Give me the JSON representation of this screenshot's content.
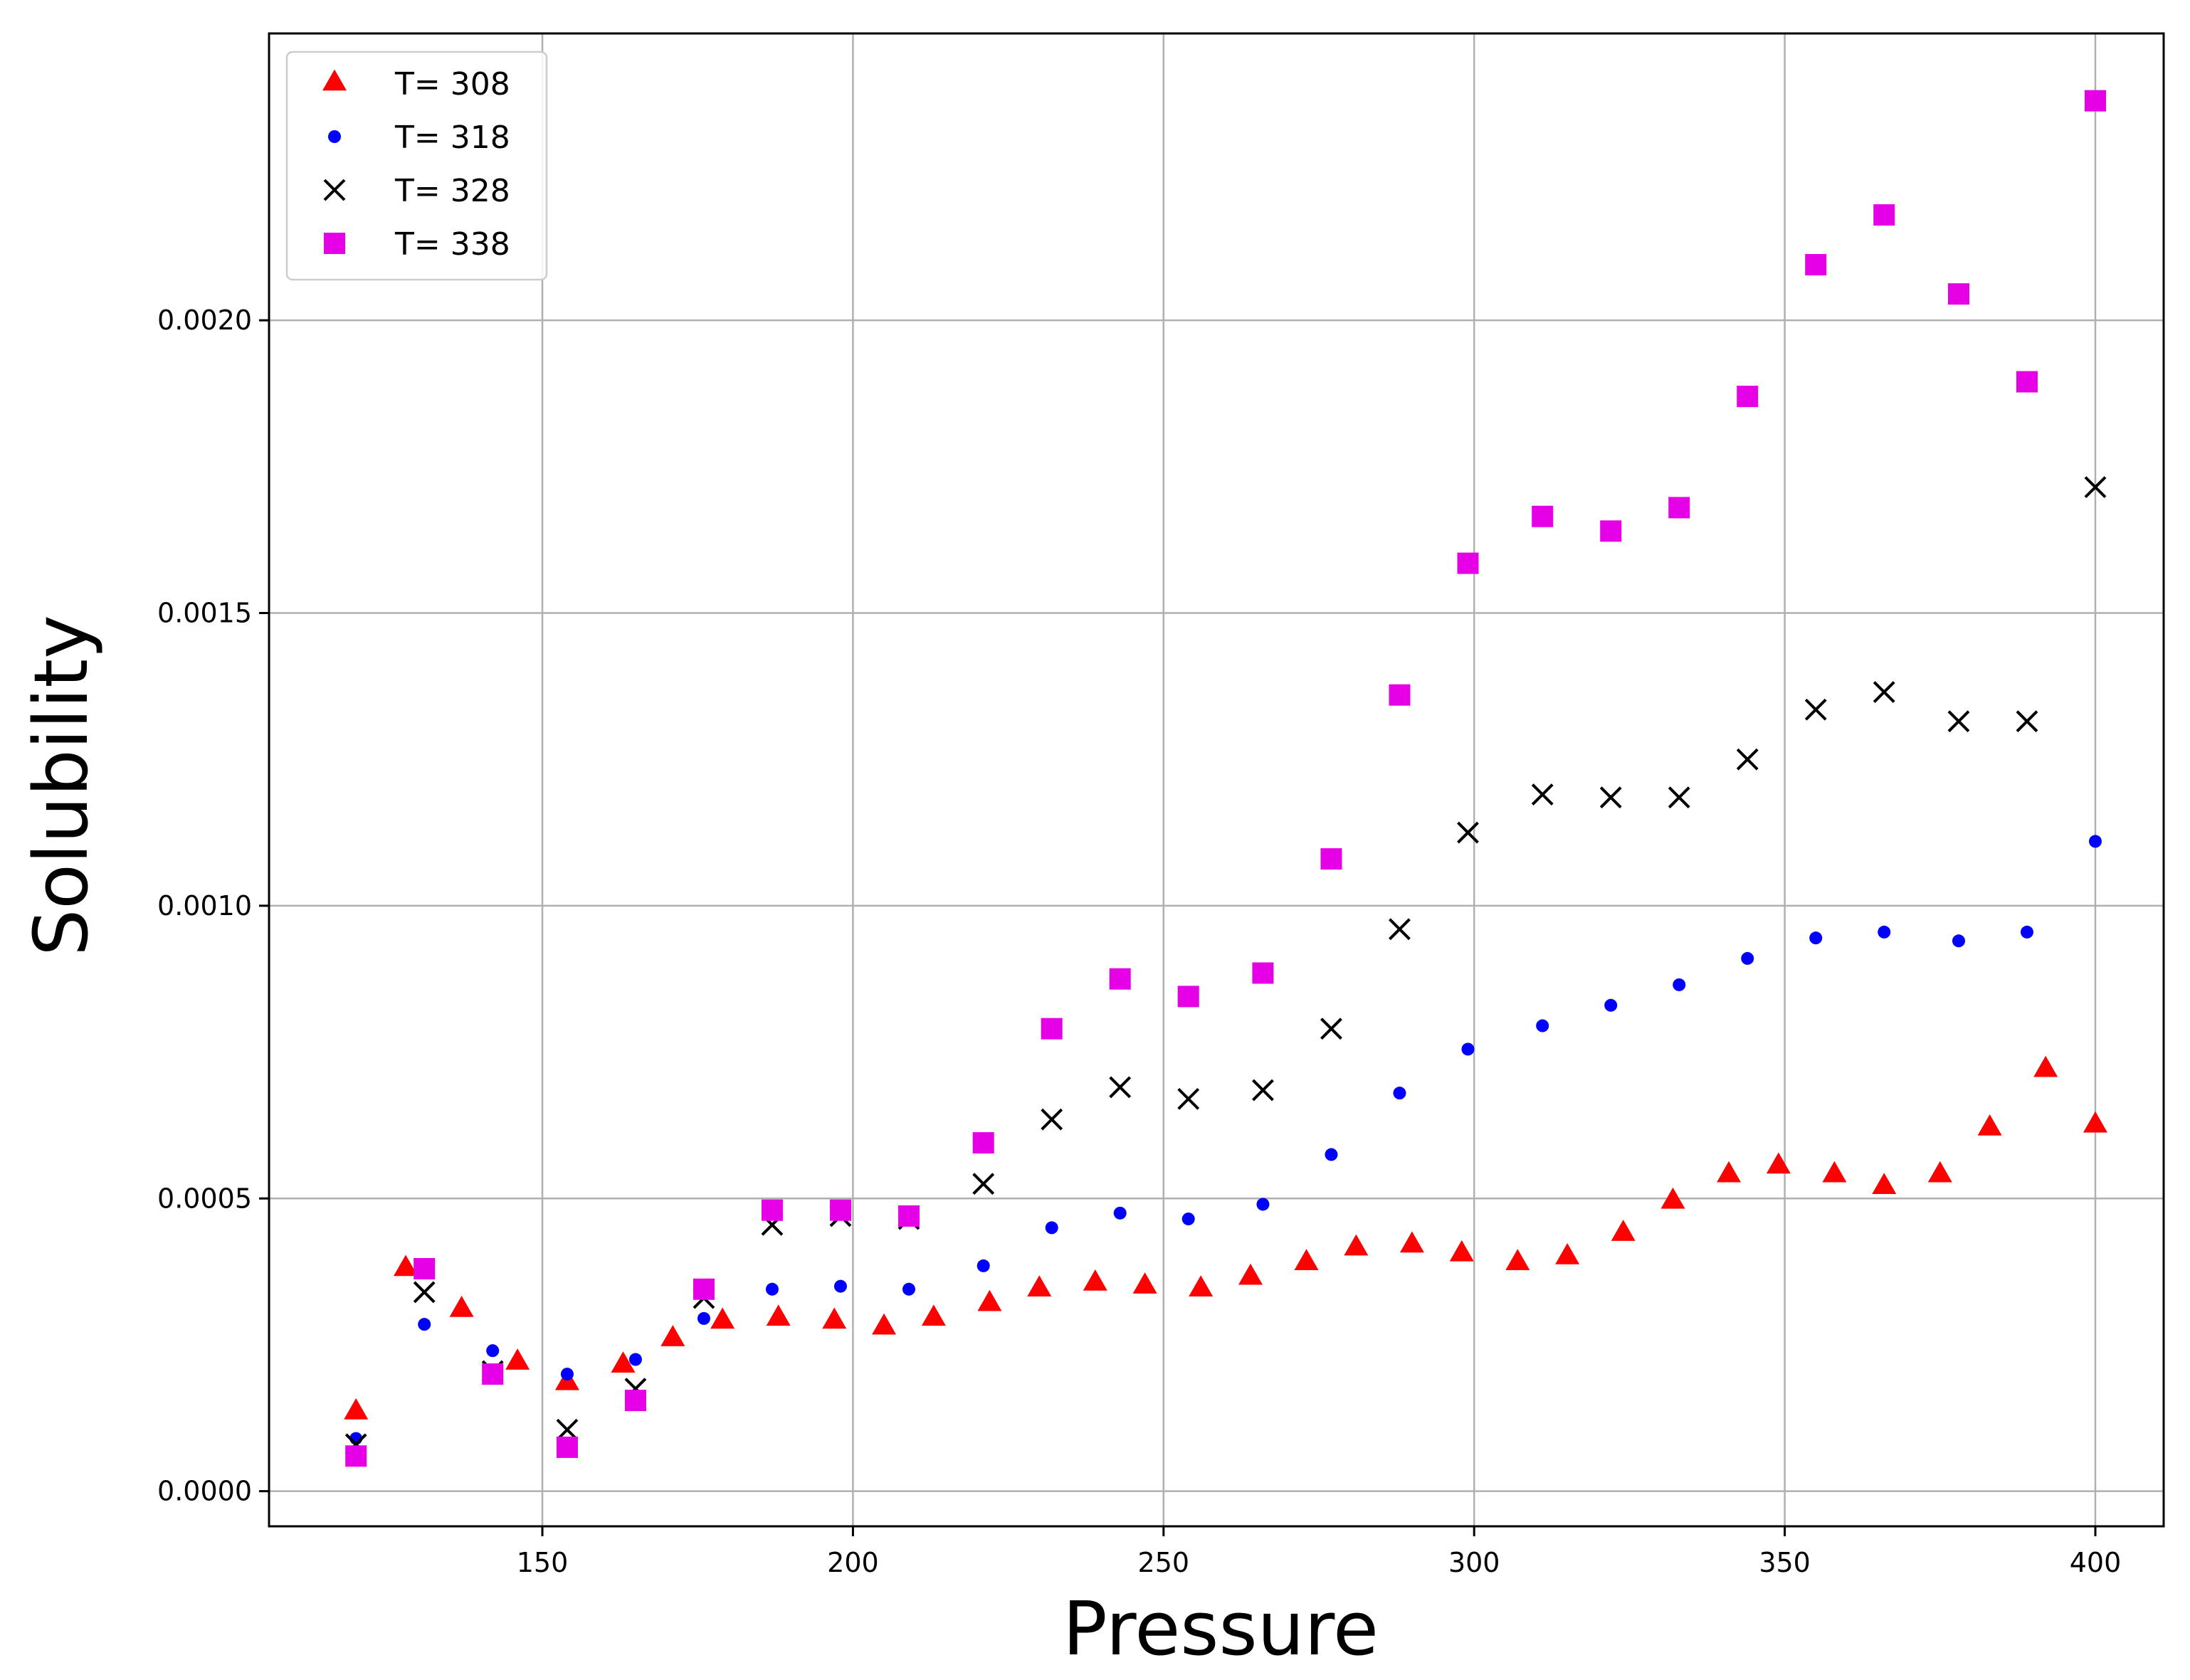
{
  "chart_data": {
    "type": "scatter",
    "title": "",
    "xlabel": "Pressure",
    "ylabel": "Solubility",
    "xlim": [
      106,
      411
    ],
    "ylim": [
      -6e-05,
      0.00249
    ],
    "x_ticks": [
      150,
      200,
      250,
      300,
      350,
      400
    ],
    "x_tick_labels": [
      "150",
      "200",
      "250",
      "300",
      "350",
      "400"
    ],
    "y_ticks": [
      0.0,
      0.0005,
      0.001,
      0.0015,
      0.002
    ],
    "y_tick_labels": [
      "0.0000",
      "0.0005",
      "0.0010",
      "0.0015",
      "0.0020"
    ],
    "grid": true,
    "legend_position": "top-left",
    "series": [
      {
        "name": "T= 308",
        "marker": "triangle",
        "color": "#ff0000",
        "points": [
          [
            120,
            0.000135
          ],
          [
            128,
            0.00038
          ],
          [
            137,
            0.00031
          ],
          [
            146,
            0.00022
          ],
          [
            154,
            0.000185
          ],
          [
            163,
            0.000215
          ],
          [
            171,
            0.00026
          ],
          [
            179,
            0.00029
          ],
          [
            188,
            0.000295
          ],
          [
            197,
            0.00029
          ],
          [
            205,
            0.00028
          ],
          [
            213,
            0.000295
          ],
          [
            222,
            0.00032
          ],
          [
            230,
            0.000345
          ],
          [
            239,
            0.000355
          ],
          [
            247,
            0.00035
          ],
          [
            256,
            0.000345
          ],
          [
            264,
            0.000365
          ],
          [
            273,
            0.00039
          ],
          [
            281,
            0.000415
          ],
          [
            290,
            0.00042
          ],
          [
            298,
            0.000405
          ],
          [
            307,
            0.00039
          ],
          [
            315,
            0.0004
          ],
          [
            324,
            0.00044
          ],
          [
            332,
            0.000495
          ],
          [
            341,
            0.00054
          ],
          [
            349,
            0.000555
          ],
          [
            358,
            0.00054
          ],
          [
            366,
            0.00052
          ],
          [
            375,
            0.00054
          ],
          [
            383,
            0.00062
          ],
          [
            392,
            0.00072
          ],
          [
            400,
            0.000625
          ]
        ]
      },
      {
        "name": "T= 318",
        "marker": "circle",
        "color": "#0000ff",
        "points": [
          [
            120,
            9e-05
          ],
          [
            131,
            0.000285
          ],
          [
            142,
            0.00024
          ],
          [
            154,
            0.0002
          ],
          [
            165,
            0.000225
          ],
          [
            176,
            0.000295
          ],
          [
            187,
            0.000345
          ],
          [
            198,
            0.00035
          ],
          [
            209,
            0.000345
          ],
          [
            221,
            0.000385
          ],
          [
            232,
            0.00045
          ],
          [
            243,
            0.000475
          ],
          [
            254,
            0.000465
          ],
          [
            266,
            0.00049
          ],
          [
            277,
            0.000575
          ],
          [
            288,
            0.00068
          ],
          [
            299,
            0.000755
          ],
          [
            311,
            0.000795
          ],
          [
            322,
            0.00083
          ],
          [
            333,
            0.000865
          ],
          [
            344,
            0.00091
          ],
          [
            355,
            0.000945
          ],
          [
            366,
            0.000955
          ],
          [
            378,
            0.00094
          ],
          [
            389,
            0.000955
          ],
          [
            400,
            0.00111
          ]
        ]
      },
      {
        "name": "T= 328",
        "marker": "x",
        "color": "#000000",
        "points": [
          [
            120,
            8e-05
          ],
          [
            131,
            0.00034
          ],
          [
            142,
            0.000205
          ],
          [
            154,
            0.000105
          ],
          [
            165,
            0.000175
          ],
          [
            176,
            0.00033
          ],
          [
            187,
            0.000455
          ],
          [
            198,
            0.00047
          ],
          [
            209,
            0.000465
          ],
          [
            221,
            0.000525
          ],
          [
            232,
            0.000635
          ],
          [
            243,
            0.00069
          ],
          [
            254,
            0.00067
          ],
          [
            266,
            0.000685
          ],
          [
            277,
            0.00079
          ],
          [
            288,
            0.00096
          ],
          [
            299,
            0.001125
          ],
          [
            311,
            0.00119
          ],
          [
            322,
            0.001185
          ],
          [
            333,
            0.001185
          ],
          [
            344,
            0.00125
          ],
          [
            355,
            0.001335
          ],
          [
            366,
            0.001365
          ],
          [
            378,
            0.001315
          ],
          [
            389,
            0.001315
          ],
          [
            400,
            0.001715
          ]
        ]
      },
      {
        "name": "T= 338",
        "marker": "square",
        "color": "#e600e6",
        "points": [
          [
            120,
            6e-05
          ],
          [
            131,
            0.00038
          ],
          [
            142,
            0.0002
          ],
          [
            154,
            7.5e-05
          ],
          [
            165,
            0.000155
          ],
          [
            176,
            0.000345
          ],
          [
            187,
            0.00048
          ],
          [
            198,
            0.00048
          ],
          [
            209,
            0.00047
          ],
          [
            221,
            0.000595
          ],
          [
            232,
            0.00079
          ],
          [
            243,
            0.000875
          ],
          [
            254,
            0.000845
          ],
          [
            266,
            0.000885
          ],
          [
            277,
            0.00108
          ],
          [
            288,
            0.00136
          ],
          [
            299,
            0.001585
          ],
          [
            311,
            0.001665
          ],
          [
            322,
            0.00164
          ],
          [
            333,
            0.00168
          ],
          [
            344,
            0.00187
          ],
          [
            355,
            0.002095
          ],
          [
            366,
            0.00218
          ],
          [
            378,
            0.002045
          ],
          [
            389,
            0.001895
          ],
          [
            400,
            0.002375
          ]
        ]
      }
    ]
  }
}
